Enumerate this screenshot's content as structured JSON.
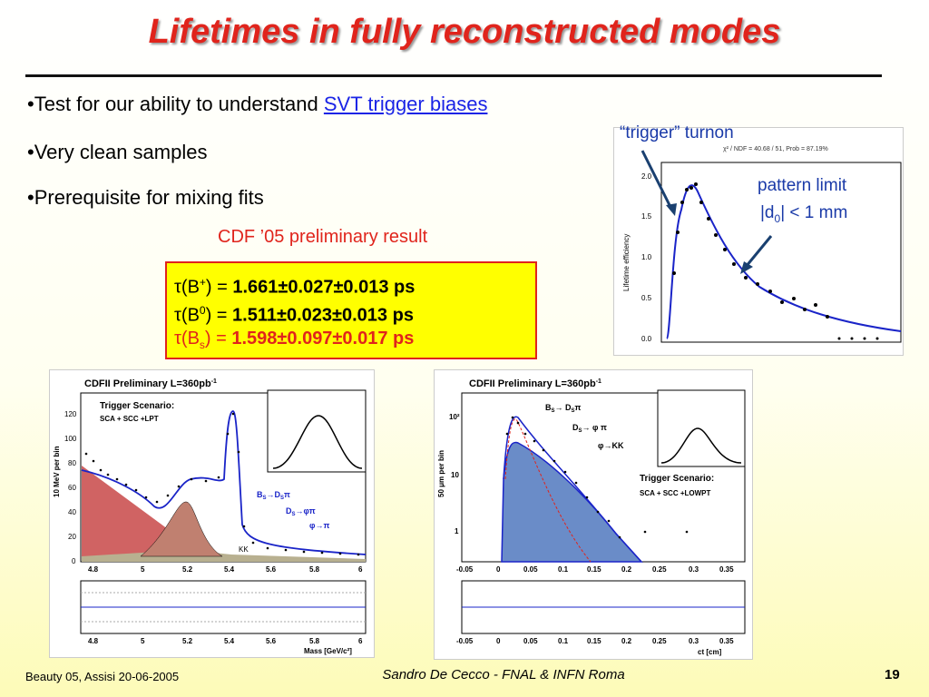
{
  "title": "Lifetimes in fully reconstructed modes",
  "bullets": [
    {
      "prefix": "•Test for our ability to understand ",
      "link": "SVT  trigger biases"
    },
    {
      "prefix": "•Very clean samples",
      "link": ""
    },
    {
      "prefix": "•Prerequisite for mixing fits",
      "link": ""
    }
  ],
  "cdf_prelim": "CDF ’05 preliminary result",
  "results": [
    {
      "tau": "τ",
      "particle": "(B",
      "sup": "+",
      "sub": "",
      "close": ") = ",
      "value": "1.661±0.027±0.013 ps",
      "color": "#000000"
    },
    {
      "tau": "τ",
      "particle": "(B",
      "sup": "0",
      "sub": "",
      "close": ") = ",
      "value": "1.511±0.023±0.013 ps",
      "color": "#000000"
    },
    {
      "tau": "τ",
      "particle": "(B",
      "sup": "",
      "sub": "s",
      "close": ") = ",
      "value": "1.598±0.097±0.017 ps",
      "color": "#e0241c"
    }
  ],
  "efficiency_plot": {
    "annotation_turnon": "“trigger” turnon",
    "annotation_pattern_1": "pattern limit",
    "annotation_pattern_2_a": "|d",
    "annotation_pattern_2_sub": "0",
    "annotation_pattern_2_b": "| < 1 mm",
    "fit_text": "χ² / NDF = 40.68 / 51, Prob = 87.19%",
    "ylabel": "Lifetime efficiency",
    "yticks": [
      "0.0",
      "0.5",
      "1.0",
      "1.5",
      "2.0"
    ]
  },
  "mass_plot": {
    "header": "CDFII Preliminary L=360pb",
    "header_sup": "-1",
    "scenario_title": "Trigger Scenario:",
    "scenario_text": "SCA + SCC +LPT",
    "ylabel": "10 MeV per bin",
    "yticks": [
      "0",
      "20",
      "40",
      "60",
      "80",
      "100",
      "120"
    ],
    "xticks": [
      "4.8",
      "5",
      "5.2",
      "5.4",
      "5.6",
      "5.8",
      "6"
    ],
    "decay_1": "B",
    "decay_1_sub": "S",
    "decay_1_rest": "→D",
    "decay_1_sub2": "S",
    "decay_1_tail": "π",
    "decay_2": "D",
    "decay_2_sub": "S",
    "decay_2_rest": "→φπ",
    "decay_3": "φ→π",
    "kk_label": "KK",
    "xlabel": "Mass [GeV/c²]"
  },
  "ct_plot": {
    "header": "CDFII Preliminary L=360pb",
    "header_sup": "-1",
    "ylabel": "50 μm per bin",
    "yticks": [
      "1",
      "10",
      "10²"
    ],
    "xticks": [
      "-0.05",
      "0",
      "0.05",
      "0.1",
      "0.15",
      "0.2",
      "0.25",
      "0.3",
      "0.35"
    ],
    "decay_1": "B",
    "decay_1_sub": "S",
    "decay_1_rest": "→ D",
    "decay_1_sub2": "S",
    "decay_1_tail": "π",
    "decay_2": "D",
    "decay_2_sub": "S",
    "decay_2_rest": "→ φ π",
    "decay_3": "φ→KK",
    "scenario_title": "Trigger Scenario:",
    "scenario_text": "SCA + SCC +LOWPT",
    "xlabel": "ct [cm]"
  },
  "footer": {
    "left": "Beauty 05, Assisi 20-06-2005",
    "center": "Sandro De Cecco - FNAL & INFN Roma",
    "page": "19"
  }
}
